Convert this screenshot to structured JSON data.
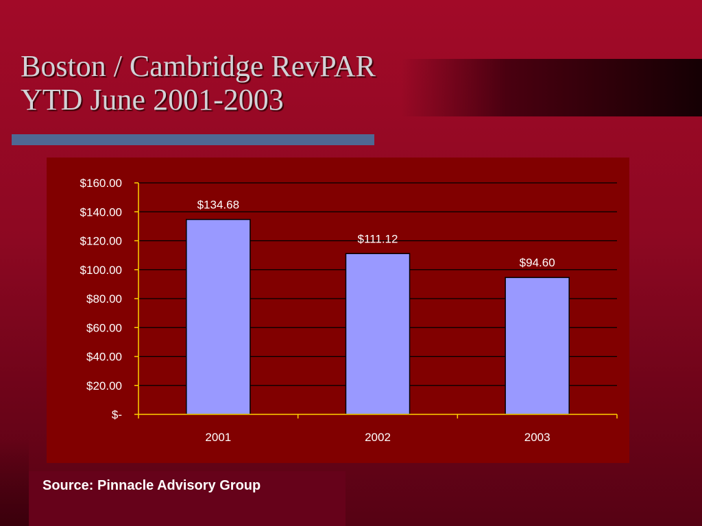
{
  "title": {
    "line1": "Boston / Cambridge RevPAR",
    "line2": "YTD June 2001-2003"
  },
  "source": "Source: Pinnacle Advisory Group",
  "colors": {
    "bar": "#9999ff",
    "plot_area": "#810000",
    "axis": "#ffd200",
    "title_rule": "#4f6893"
  },
  "chart_data": {
    "type": "bar",
    "categories": [
      "2001",
      "2002",
      "2003"
    ],
    "values": [
      134.68,
      111.12,
      94.6
    ],
    "data_labels": [
      "$134.68",
      "$111.12",
      "$94.60"
    ],
    "yticks": [
      0,
      20,
      40,
      60,
      80,
      100,
      120,
      140,
      160
    ],
    "ytick_labels": [
      "$-",
      "$20.00",
      "$40.00",
      "$60.00",
      "$80.00",
      "$100.00",
      "$120.00",
      "$140.00",
      "$160.00"
    ],
    "ylim": [
      0,
      160
    ],
    "title": "",
    "xlabel": "",
    "ylabel": "",
    "grid": true,
    "legend": "none"
  }
}
